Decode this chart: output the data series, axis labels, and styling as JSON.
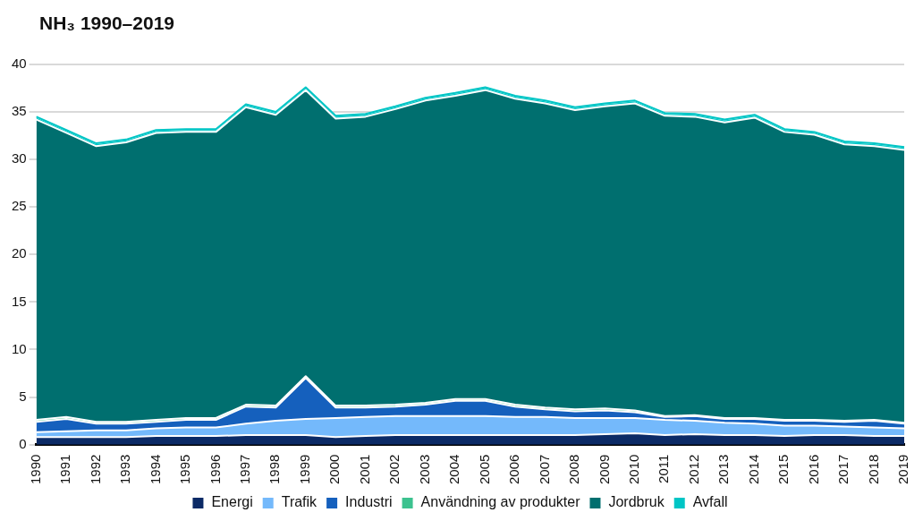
{
  "chart_data": {
    "type": "area",
    "title": "NH₃ 1990–2019",
    "stacked": true,
    "categories": [
      "1990",
      "1991",
      "1992",
      "1993",
      "1994",
      "1995",
      "1996",
      "1997",
      "1998",
      "1999",
      "2000",
      "2001",
      "2002",
      "2003",
      "2004",
      "2005",
      "2006",
      "2007",
      "2008",
      "2009",
      "2010",
      "2011",
      "2012",
      "2013",
      "2014",
      "2015",
      "2016",
      "2017",
      "2018",
      "2019"
    ],
    "series": [
      {
        "name": "Energi",
        "color": "#0b2a66",
        "values": [
          0.8,
          0.8,
          0.8,
          0.8,
          0.9,
          0.9,
          0.9,
          1.0,
          1.0,
          1.0,
          0.8,
          0.9,
          1.0,
          1.0,
          1.0,
          1.0,
          1.0,
          1.0,
          1.0,
          1.1,
          1.2,
          1.0,
          1.1,
          1.0,
          1.0,
          0.9,
          1.0,
          1.0,
          0.9,
          0.9
        ]
      },
      {
        "name": "Trafik",
        "color": "#74b9fb",
        "values": [
          0.5,
          0.6,
          0.7,
          0.7,
          0.8,
          0.9,
          0.9,
          1.2,
          1.5,
          1.7,
          2.0,
          2.0,
          2.0,
          2.0,
          2.0,
          2.0,
          1.9,
          1.9,
          1.8,
          1.7,
          1.6,
          1.6,
          1.4,
          1.3,
          1.2,
          1.1,
          1.0,
          0.9,
          0.9,
          0.8
        ]
      },
      {
        "name": "Industri",
        "color": "#1560bd",
        "values": [
          1.1,
          1.3,
          0.7,
          0.7,
          0.7,
          0.8,
          0.8,
          1.8,
          1.4,
          4.3,
          1.1,
          1.0,
          1.0,
          1.2,
          1.6,
          1.6,
          1.1,
          0.8,
          0.7,
          0.8,
          0.6,
          0.3,
          0.5,
          0.4,
          0.5,
          0.5,
          0.5,
          0.5,
          0.7,
          0.5
        ]
      },
      {
        "name": "Användning av produkter",
        "color": "#3cc28f",
        "values": [
          0.2,
          0.2,
          0.2,
          0.2,
          0.2,
          0.2,
          0.2,
          0.2,
          0.2,
          0.2,
          0.2,
          0.2,
          0.2,
          0.2,
          0.2,
          0.2,
          0.2,
          0.2,
          0.2,
          0.2,
          0.2,
          0.1,
          0.1,
          0.1,
          0.1,
          0.1,
          0.1,
          0.1,
          0.1,
          0.1
        ]
      },
      {
        "name": "Jordbruk",
        "color": "#006f6f",
        "values": [
          31.6,
          29.9,
          29.0,
          29.4,
          30.2,
          30.1,
          30.1,
          31.3,
          30.6,
          30.1,
          30.2,
          30.4,
          31.1,
          31.8,
          31.9,
          32.5,
          32.2,
          32.0,
          31.5,
          31.8,
          32.3,
          31.6,
          31.4,
          31.1,
          31.6,
          30.3,
          30.0,
          29.1,
          28.8,
          28.7
        ]
      },
      {
        "name": "Avfall",
        "color": "#00c5c5",
        "values": [
          0.3,
          0.3,
          0.3,
          0.3,
          0.3,
          0.3,
          0.3,
          0.3,
          0.3,
          0.3,
          0.3,
          0.3,
          0.3,
          0.3,
          0.3,
          0.3,
          0.3,
          0.3,
          0.3,
          0.3,
          0.3,
          0.3,
          0.3,
          0.3,
          0.3,
          0.3,
          0.3,
          0.3,
          0.3,
          0.3
        ]
      }
    ],
    "ylim": [
      0,
      40
    ],
    "yticks": [
      0,
      5,
      10,
      15,
      20,
      25,
      30,
      35,
      40
    ],
    "grid": "y",
    "legend": "bottom"
  }
}
